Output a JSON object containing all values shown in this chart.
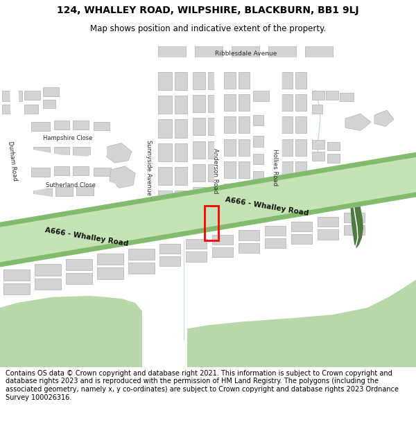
{
  "title_line1": "124, WHALLEY ROAD, WILPSHIRE, BLACKBURN, BB1 9LJ",
  "title_line2": "Map shows position and indicative extent of the property.",
  "footer_text": "Contains OS data © Crown copyright and database right 2021. This information is subject to Crown copyright and database rights 2023 and is reproduced with the permission of HM Land Registry. The polygons (including the associated geometry, namely x, y co-ordinates) are subject to Crown copyright and database rights 2023 Ordnance Survey 100026316.",
  "bg_color": "#ffffff",
  "map_bg": "#f0f0f0",
  "road_green_band": "#82bb6e",
  "road_green_fill": "#c5e3b5",
  "building_fc": "#d4d4d4",
  "building_ec": "#b8b8b8",
  "plot_edge": "#ff0000",
  "green_light": "#b8d8a8",
  "green_dark": "#4e7a42",
  "stream_color": "#c0ddf0",
  "footer_bg": "#deecd8",
  "title_fontsize": 10,
  "subtitle_fontsize": 8.5,
  "footer_fontsize": 7.0
}
